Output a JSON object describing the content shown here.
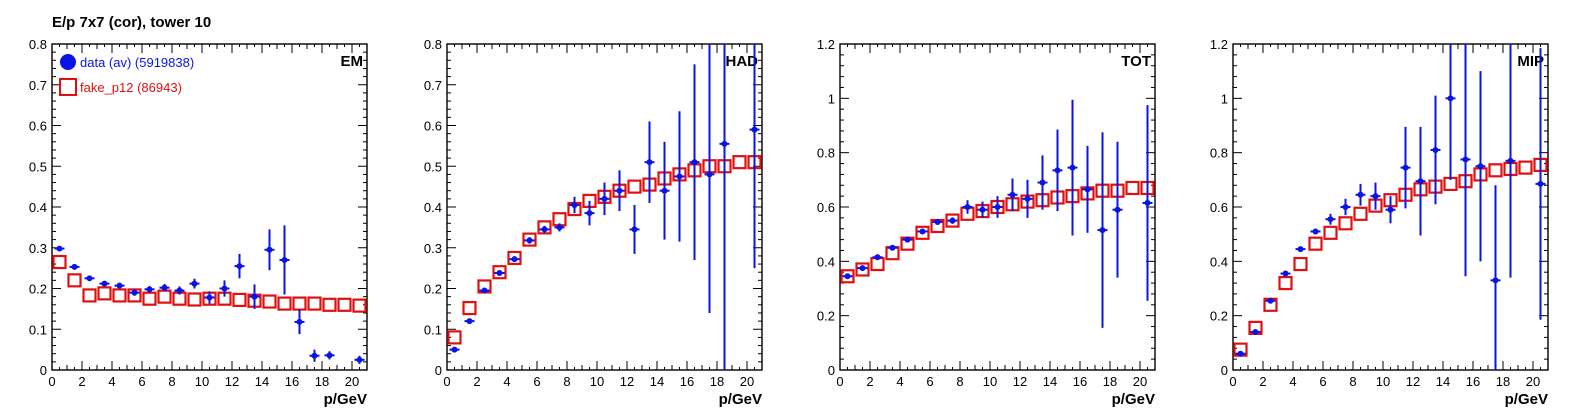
{
  "main_title": "E/p 7x7 (cor), tower 10",
  "colors": {
    "data": "#0a14e6",
    "fake": "#e01010"
  },
  "legend": [
    {
      "label": "data (av) (5919838)",
      "marker": "filled-circle"
    },
    {
      "label": "fake_p12 (86943)",
      "marker": "open-square"
    }
  ],
  "chart_data": [
    {
      "type": "scatter",
      "title": "EM",
      "xlabel": "p/GeV",
      "xlim": [
        0,
        21
      ],
      "ylim": [
        0,
        0.8
      ],
      "xticks": [
        0,
        2,
        4,
        6,
        8,
        10,
        12,
        14,
        16,
        18,
        20
      ],
      "yticks": [
        0,
        0.1,
        0.2,
        0.3,
        0.4,
        0.5,
        0.6,
        0.7,
        0.8
      ],
      "series": [
        {
          "name": "data (av) (5919838)",
          "x": [
            0.5,
            1.5,
            2.5,
            3.5,
            4.5,
            5.5,
            6.5,
            7.5,
            8.5,
            9.5,
            10.5,
            11.5,
            12.5,
            13.5,
            14.5,
            15.5,
            16.5,
            17.5,
            18.5,
            20.5
          ],
          "y": [
            0.298,
            0.253,
            0.225,
            0.212,
            0.207,
            0.19,
            0.198,
            0.202,
            0.195,
            0.212,
            0.178,
            0.2,
            0.255,
            0.18,
            0.295,
            0.27,
            0.118,
            0.035,
            0.036,
            0.025
          ],
          "err": [
            0.005,
            0.005,
            0.006,
            0.006,
            0.007,
            0.008,
            0.008,
            0.009,
            0.01,
            0.012,
            0.015,
            0.02,
            0.03,
            0.03,
            0.05,
            0.085,
            0.03,
            0.015,
            0.01,
            0.01
          ]
        },
        {
          "name": "fake_p12 (86943)",
          "x": [
            0.5,
            1.5,
            2.5,
            3.5,
            4.5,
            5.5,
            6.5,
            7.5,
            8.5,
            9.5,
            10.5,
            11.5,
            12.5,
            13.5,
            14.5,
            15.5,
            16.5,
            17.5,
            18.5,
            19.5,
            20.5
          ],
          "y": [
            0.265,
            0.22,
            0.183,
            0.188,
            0.183,
            0.183,
            0.175,
            0.18,
            0.175,
            0.173,
            0.175,
            0.175,
            0.172,
            0.17,
            0.168,
            0.163,
            0.163,
            0.163,
            0.16,
            0.16,
            0.158
          ]
        }
      ]
    },
    {
      "type": "scatter",
      "title": "HAD",
      "xlabel": "p/GeV",
      "xlim": [
        0,
        21
      ],
      "ylim": [
        0,
        0.8
      ],
      "xticks": [
        0,
        2,
        4,
        6,
        8,
        10,
        12,
        14,
        16,
        18,
        20
      ],
      "yticks": [
        0,
        0.1,
        0.2,
        0.3,
        0.4,
        0.5,
        0.6,
        0.7,
        0.8
      ],
      "series": [
        {
          "name": "data (av) (5919838)",
          "x": [
            0.5,
            1.5,
            2.5,
            3.5,
            4.5,
            5.5,
            6.5,
            7.5,
            8.5,
            9.5,
            10.5,
            11.5,
            12.5,
            13.5,
            14.5,
            15.5,
            16.5,
            17.5,
            18.5,
            20.5
          ],
          "y": [
            0.05,
            0.12,
            0.195,
            0.238,
            0.272,
            0.318,
            0.345,
            0.35,
            0.405,
            0.385,
            0.42,
            0.44,
            0.345,
            0.51,
            0.44,
            0.475,
            0.51,
            0.48,
            0.555,
            0.59
          ],
          "err": [
            0.005,
            0.005,
            0.006,
            0.006,
            0.007,
            0.008,
            0.009,
            0.01,
            0.02,
            0.03,
            0.04,
            0.05,
            0.06,
            0.1,
            0.12,
            0.16,
            0.24,
            0.34,
            0.6,
            0.34
          ]
        },
        {
          "name": "fake_p12 (86943)",
          "x": [
            0.5,
            1.5,
            2.5,
            3.5,
            4.5,
            5.5,
            6.5,
            7.5,
            8.5,
            9.5,
            10.5,
            11.5,
            12.5,
            13.5,
            14.5,
            15.5,
            16.5,
            17.5,
            18.5,
            19.5,
            20.5
          ],
          "y": [
            0.08,
            0.152,
            0.205,
            0.24,
            0.275,
            0.32,
            0.35,
            0.37,
            0.395,
            0.415,
            0.425,
            0.44,
            0.45,
            0.455,
            0.47,
            0.48,
            0.49,
            0.5,
            0.5,
            0.51,
            0.51
          ]
        }
      ]
    },
    {
      "type": "scatter",
      "title": "TOT",
      "xlabel": "p/GeV",
      "xlim": [
        0,
        21
      ],
      "ylim": [
        0,
        1.2
      ],
      "xticks": [
        0,
        2,
        4,
        6,
        8,
        10,
        12,
        14,
        16,
        18,
        20
      ],
      "yticks": [
        0,
        0.2,
        0.4,
        0.6,
        0.8,
        1,
        1.2
      ],
      "series": [
        {
          "name": "data (av) (5919838)",
          "x": [
            0.5,
            1.5,
            2.5,
            3.5,
            4.5,
            5.5,
            6.5,
            7.5,
            8.5,
            9.5,
            10.5,
            11.5,
            12.5,
            13.5,
            14.5,
            15.5,
            16.5,
            17.5,
            18.5,
            20.5
          ],
          "y": [
            0.345,
            0.375,
            0.415,
            0.45,
            0.48,
            0.51,
            0.545,
            0.55,
            0.6,
            0.59,
            0.6,
            0.645,
            0.63,
            0.69,
            0.735,
            0.745,
            0.665,
            0.515,
            0.59,
            0.615
          ],
          "err": [
            0.005,
            0.005,
            0.006,
            0.006,
            0.007,
            0.008,
            0.01,
            0.012,
            0.025,
            0.03,
            0.04,
            0.06,
            0.07,
            0.1,
            0.15,
            0.25,
            0.16,
            0.36,
            0.25,
            0.36
          ]
        },
        {
          "name": "fake_p12 (86943)",
          "x": [
            0.5,
            1.5,
            2.5,
            3.5,
            4.5,
            5.5,
            6.5,
            7.5,
            8.5,
            9.5,
            10.5,
            11.5,
            12.5,
            13.5,
            14.5,
            15.5,
            16.5,
            17.5,
            18.5,
            19.5,
            20.5
          ],
          "y": [
            0.345,
            0.37,
            0.39,
            0.43,
            0.465,
            0.505,
            0.53,
            0.55,
            0.575,
            0.585,
            0.6,
            0.61,
            0.62,
            0.625,
            0.635,
            0.64,
            0.65,
            0.66,
            0.66,
            0.67,
            0.67
          ]
        }
      ]
    },
    {
      "type": "scatter",
      "title": "MIP",
      "xlabel": "p/GeV",
      "xlim": [
        0,
        21
      ],
      "ylim": [
        0,
        1.2
      ],
      "xticks": [
        0,
        2,
        4,
        6,
        8,
        10,
        12,
        14,
        16,
        18,
        20
      ],
      "yticks": [
        0,
        0.2,
        0.4,
        0.6,
        0.8,
        1,
        1.2
      ],
      "series": [
        {
          "name": "data (av) (5919838)",
          "x": [
            0.5,
            1.5,
            2.5,
            3.5,
            4.5,
            5.5,
            6.5,
            7.5,
            8.5,
            9.5,
            10.5,
            11.5,
            12.5,
            13.5,
            14.5,
            15.5,
            16.5,
            17.5,
            18.5,
            20.5
          ],
          "y": [
            0.06,
            0.14,
            0.255,
            0.355,
            0.445,
            0.51,
            0.555,
            0.6,
            0.645,
            0.64,
            0.59,
            0.745,
            0.695,
            0.81,
            1.0,
            0.775,
            0.75,
            0.33,
            0.77,
            0.685
          ],
          "err": [
            0.005,
            0.006,
            0.007,
            0.008,
            0.009,
            0.01,
            0.02,
            0.03,
            0.04,
            0.05,
            0.05,
            0.15,
            0.2,
            0.2,
            0.3,
            0.43,
            0.35,
            0.35,
            0.43,
            0.5
          ]
        },
        {
          "name": "fake_p12 (86943)",
          "x": [
            0.5,
            1.5,
            2.5,
            3.5,
            4.5,
            5.5,
            6.5,
            7.5,
            8.5,
            9.5,
            10.5,
            11.5,
            12.5,
            13.5,
            14.5,
            15.5,
            16.5,
            17.5,
            18.5,
            19.5,
            20.5
          ],
          "y": [
            0.075,
            0.155,
            0.24,
            0.32,
            0.39,
            0.465,
            0.505,
            0.54,
            0.575,
            0.605,
            0.625,
            0.645,
            0.665,
            0.675,
            0.685,
            0.695,
            0.72,
            0.735,
            0.74,
            0.745,
            0.755
          ]
        }
      ]
    }
  ]
}
